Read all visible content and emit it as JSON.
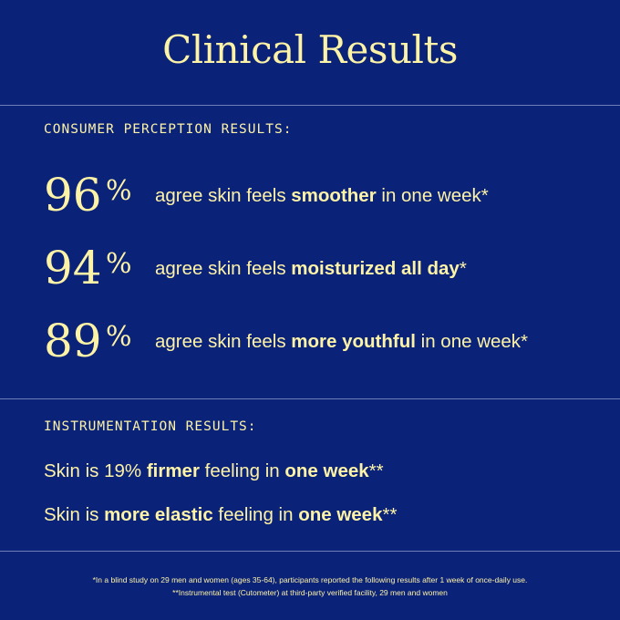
{
  "title": "Clinical Results",
  "consumer": {
    "label": "CONSUMER PERCEPTION RESULTS:",
    "stats": [
      {
        "number": "96",
        "percent": "%",
        "pre": "agree skin feels ",
        "bold": "smoother",
        "post": " in one week*"
      },
      {
        "number": "94",
        "percent": "%",
        "pre": "agree skin feels ",
        "bold": "moisturized all day",
        "post": "*"
      },
      {
        "number": "89",
        "percent": "%",
        "pre": "agree skin feels ",
        "bold": "more youthful",
        "post": " in one week*"
      }
    ]
  },
  "instrumentation": {
    "label": "INSTRUMENTATION RESULTS:",
    "line1": {
      "pre": "Skin is 19% ",
      "bold1": "firmer",
      "mid": " feeling in ",
      "bold2": "one week",
      "post": "**"
    },
    "line2": {
      "pre": "Skin is ",
      "bold1": "more elastic",
      "mid": " feeling in ",
      "bold2": "one week",
      "post": "**"
    }
  },
  "footnotes": {
    "note1": "*In a blind study on 29 men and women (ages 35-64), participants reported the following results after 1 week of once-daily use.",
    "note2": "**Instrumental test (Cutometer) at third-party verified facility, 29 men and women"
  },
  "colors": {
    "background": "#0b2279",
    "text": "#fdf3a6",
    "rule": "#6e7fb8"
  }
}
